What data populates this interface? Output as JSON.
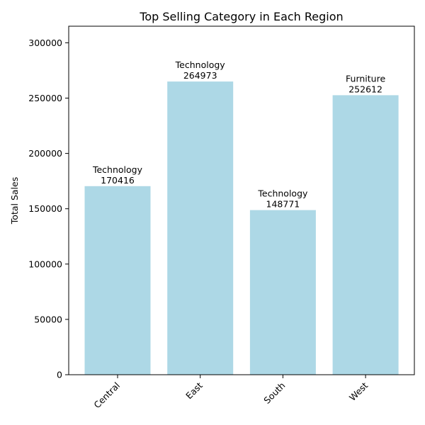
{
  "chart_data": {
    "type": "bar",
    "title": "Top Selling Category in Each Region",
    "xlabel": "",
    "ylabel": "Total Sales",
    "categories": [
      "Central",
      "East",
      "South",
      "West"
    ],
    "values": [
      170416,
      264973,
      148771,
      252612
    ],
    "bar_labels": [
      "Technology",
      "Technology",
      "Technology",
      "Furniture"
    ],
    "value_labels": [
      "170416",
      "264973",
      "148771",
      "252612"
    ],
    "ylim": [
      0,
      315000
    ],
    "yticks": [
      0,
      50000,
      100000,
      150000,
      200000,
      250000,
      300000
    ],
    "ytick_labels": [
      "0",
      "50000",
      "100000",
      "150000",
      "200000",
      "250000",
      "300000"
    ],
    "grid": false,
    "x_tick_rotation_deg": 45,
    "bar_color": "#add8e6"
  }
}
